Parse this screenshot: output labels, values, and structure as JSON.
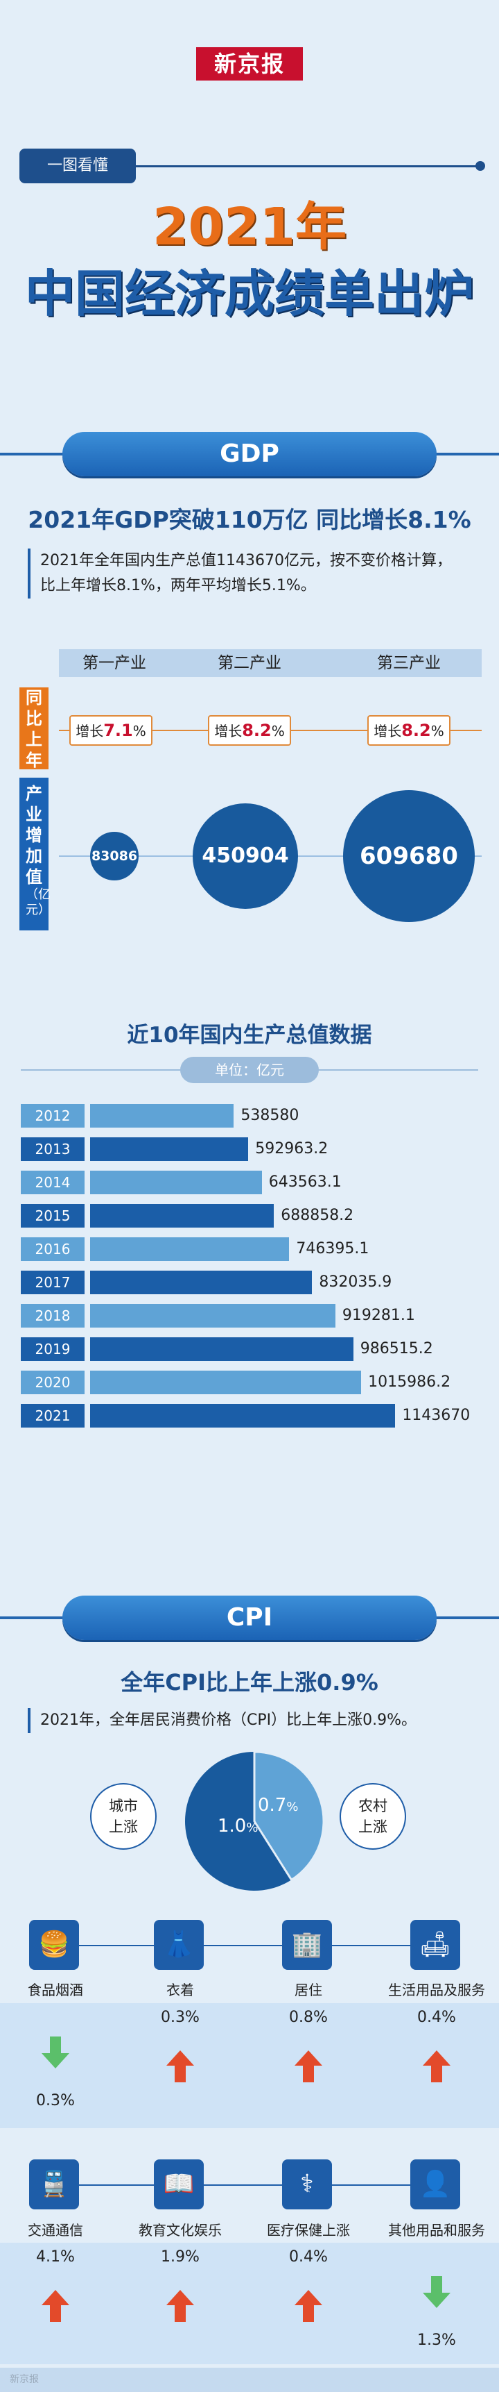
{
  "header": {
    "logo": "新京报",
    "tag": "一图看懂",
    "title_year": "2021年",
    "title_main": "中国经济成绩单出炉"
  },
  "gdp": {
    "section_title": "GDP",
    "headline": "2021年GDP突破110万亿 同比增长8.1%",
    "paragraph_line1": "2021年全年国内生产总值1143670亿元，按不变价格计算，",
    "paragraph_line2": "比上年增长8.1%，两年平均增长5.1%。",
    "growth_side_label": "同比上年",
    "value_side_label": "产业增加值",
    "value_side_unit": "（亿元）",
    "industries": [
      {
        "name": "第一产业",
        "growth_prefix": "增长",
        "growth": "7.1",
        "growth_suffix": "%",
        "value": "83086",
        "value_num": 83086
      },
      {
        "name": "第二产业",
        "growth_prefix": "增长",
        "growth": "8.2",
        "growth_suffix": "%",
        "value": "450904",
        "value_num": 450904
      },
      {
        "name": "第三产业",
        "growth_prefix": "增长",
        "growth": "8.2",
        "growth_suffix": "%",
        "value": "609680",
        "value_num": 609680
      }
    ]
  },
  "chart_data": {
    "type": "bar",
    "title": "近10年国内生产总值数据",
    "unit_label": "单位：亿元",
    "categories": [
      "2012",
      "2013",
      "2014",
      "2015",
      "2016",
      "2017",
      "2018",
      "2019",
      "2020",
      "2021"
    ],
    "value_labels": [
      "538580",
      "592963.2",
      "643563.1",
      "688858.2",
      "746395.1",
      "832035.9",
      "919281.1",
      "986515.2",
      "1015986.2",
      "1143670"
    ],
    "values": [
      538580,
      592963.2,
      643563.1,
      688858.2,
      746395.1,
      832035.9,
      919281.1,
      986515.2,
      1015986.2,
      1143670
    ],
    "colors": [
      "#5fa3d6",
      "#1b5ea8"
    ],
    "xlim": [
      0,
      1200000
    ]
  },
  "cpi": {
    "section_title": "CPI",
    "headline": "全年CPI比上年上涨0.9%",
    "paragraph": "2021年，全年居民消费价格（CPI）比上年上涨0.9%。",
    "urban_label_1": "城市",
    "urban_label_2": "上涨",
    "urban_value": "1.0",
    "urban_unit": "%",
    "rural_label_1": "农村",
    "rural_label_2": "上涨",
    "rural_value": "0.7",
    "rural_unit": "%",
    "pie_share_urban": 0.59,
    "colors": {
      "urban": "#185a9d",
      "rural": "#5fa3d6",
      "up": "#e34a2a",
      "down": "#5bbf6a"
    },
    "row1": [
      {
        "name": "食品烟酒",
        "value": "0.3%",
        "dir": "down",
        "icon": "food-icon"
      },
      {
        "name": "衣着",
        "value": "0.3%",
        "dir": "up",
        "icon": "clothing-icon"
      },
      {
        "name": "居住",
        "value": "0.8%",
        "dir": "up",
        "icon": "housing-icon"
      },
      {
        "name": "生活用品及服务",
        "value": "0.4%",
        "dir": "up",
        "icon": "household-icon"
      }
    ],
    "row2": [
      {
        "name": "交通通信",
        "value": "4.1%",
        "dir": "up",
        "icon": "train-icon"
      },
      {
        "name": "教育文化娱乐",
        "value": "1.9%",
        "dir": "up",
        "icon": "education-icon"
      },
      {
        "name": "医疗保健上涨",
        "value": "0.4%",
        "dir": "up",
        "icon": "medical-icon"
      },
      {
        "name": "其他用品和服务",
        "value": "1.3%",
        "dir": "down",
        "icon": "other-icon"
      }
    ]
  },
  "watermark": "新京报"
}
